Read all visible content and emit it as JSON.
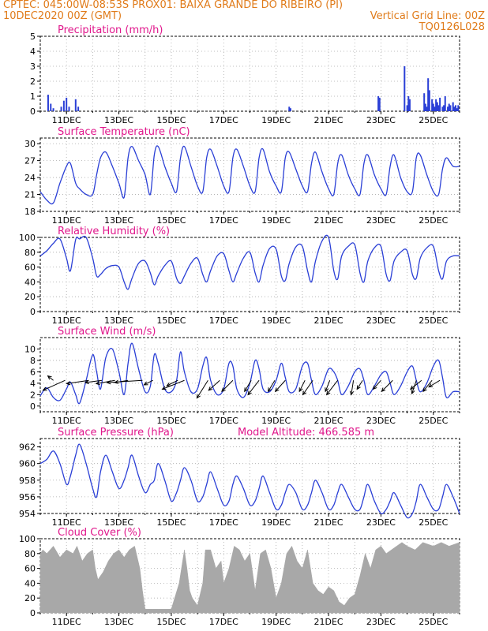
{
  "header": {
    "line1_left": "CPTEC:   045:00W-08:53S   PROX01: BAIXA GRANDE DO RIBEIRO (PI)",
    "line2_left": "10DEC2020 00Z (GMT)",
    "line2_right": "Vertical Grid Line: 00Z",
    "line3_right": "TQ0126L028"
  },
  "colors": {
    "header": "#e07b1a",
    "title": "#e0188c",
    "line": "#2a3fd6",
    "bars": "#2a3fd6",
    "cloud": "#a8a8a8",
    "arrow": "#000000"
  },
  "x_ticks": [
    "11DEC",
    "13DEC",
    "15DEC",
    "17DEC",
    "19DEC",
    "21DEC",
    "23DEC",
    "25DEC"
  ],
  "chart_data": [
    {
      "type": "bar",
      "title": "Precipitation (mm/h)",
      "ylim": [
        0,
        5
      ],
      "yticks": [
        "0",
        "1",
        "2",
        "3",
        "4",
        "5"
      ],
      "points": [
        [
          0.3,
          1.1
        ],
        [
          0.4,
          0.5
        ],
        [
          0.5,
          0.2
        ],
        [
          0.8,
          0.3
        ],
        [
          0.9,
          0.7
        ],
        [
          1.0,
          0.9
        ],
        [
          1.1,
          0.3
        ],
        [
          1.35,
          0.8
        ],
        [
          1.45,
          0.3
        ],
        [
          9.5,
          0.3
        ],
        [
          9.55,
          0.2
        ],
        [
          12.9,
          1.0
        ],
        [
          12.95,
          0.9
        ],
        [
          13.9,
          3.0
        ],
        [
          14.0,
          0.4
        ],
        [
          14.05,
          1.0
        ],
        [
          14.1,
          0.8
        ],
        [
          14.65,
          1.2
        ],
        [
          14.7,
          0.5
        ],
        [
          14.75,
          0.3
        ],
        [
          14.8,
          2.2
        ],
        [
          14.85,
          1.4
        ],
        [
          14.95,
          0.8
        ],
        [
          15.0,
          0.5
        ],
        [
          15.05,
          0.3
        ],
        [
          15.1,
          0.8
        ],
        [
          15.15,
          0.6
        ],
        [
          15.2,
          0.4
        ],
        [
          15.25,
          0.9
        ],
        [
          15.35,
          0.3
        ],
        [
          15.4,
          0.4
        ],
        [
          15.45,
          1.0
        ],
        [
          15.55,
          0.3
        ],
        [
          15.6,
          0.5
        ],
        [
          15.65,
          0.4
        ],
        [
          15.75,
          0.6
        ],
        [
          15.8,
          0.3
        ],
        [
          15.85,
          0.4
        ],
        [
          15.9,
          0.2
        ],
        [
          15.95,
          0.4
        ]
      ]
    },
    {
      "type": "line",
      "title": "Surface Temperature (nC)",
      "ylim": [
        18,
        31
      ],
      "yticks": [
        "18",
        "21",
        "24",
        "27",
        "30"
      ],
      "x": [
        0,
        0.25,
        0.5,
        0.75,
        1.0,
        1.15,
        1.35,
        1.5,
        1.75,
        2.0,
        2.15,
        2.3,
        2.5,
        2.75,
        3.0,
        3.2,
        3.35,
        3.5,
        3.75,
        4.0,
        4.2,
        4.35,
        4.5,
        4.75,
        5.0,
        5.2,
        5.35,
        5.5,
        5.75,
        6.0,
        6.2,
        6.35,
        6.5,
        6.75,
        7.0,
        7.2,
        7.35,
        7.5,
        7.75,
        8.0,
        8.2,
        8.35,
        8.5,
        8.75,
        9.0,
        9.2,
        9.35,
        9.5,
        9.75,
        10.0,
        10.2,
        10.35,
        10.5,
        10.75,
        11.0,
        11.2,
        11.35,
        11.5,
        11.75,
        12.0,
        12.2,
        12.35,
        12.5,
        12.75,
        13.0,
        13.2,
        13.35,
        13.5,
        13.75,
        14.0,
        14.2,
        14.35,
        14.5,
        14.75,
        15.0,
        15.2,
        15.35,
        15.5,
        15.75,
        16.0
      ],
      "y": [
        21.5,
        20.0,
        19.5,
        23.0,
        26.0,
        26.5,
        23.0,
        22.0,
        21.0,
        21.0,
        24.5,
        27.5,
        28.5,
        26.0,
        23.0,
        20.5,
        27.5,
        29.5,
        27.0,
        24.5,
        21.0,
        28.0,
        29.5,
        26.0,
        23.0,
        21.5,
        27.5,
        29.5,
        26.0,
        22.5,
        21.5,
        27.5,
        29.0,
        26.0,
        22.5,
        21.5,
        27.5,
        29.0,
        26.0,
        22.5,
        21.5,
        27.5,
        29.0,
        25.0,
        22.5,
        21.5,
        27.5,
        28.5,
        25.5,
        22.5,
        21.5,
        26.5,
        28.5,
        25.0,
        22.0,
        21.0,
        26.5,
        28.0,
        24.5,
        22.0,
        21.0,
        26.5,
        28.0,
        24.5,
        22.0,
        21.0,
        26.0,
        28.0,
        24.0,
        21.5,
        21.5,
        27.5,
        28.0,
        24.5,
        21.5,
        21.0,
        25.5,
        27.5,
        26.0,
        26.0
      ]
    },
    {
      "type": "line",
      "title": "Relative Humidity (%)",
      "ylim": [
        0,
        100
      ],
      "yticks": [
        "0",
        "20",
        "40",
        "60",
        "80",
        "100"
      ],
      "x": [
        0,
        0.25,
        0.5,
        0.75,
        1.0,
        1.15,
        1.35,
        1.5,
        1.75,
        2.0,
        2.15,
        2.3,
        2.5,
        2.75,
        3.0,
        3.2,
        3.35,
        3.5,
        3.75,
        4.0,
        4.2,
        4.35,
        4.5,
        4.75,
        5.0,
        5.2,
        5.35,
        5.5,
        5.75,
        6.0,
        6.2,
        6.35,
        6.5,
        6.75,
        7.0,
        7.2,
        7.35,
        7.5,
        7.75,
        8.0,
        8.2,
        8.35,
        8.5,
        8.75,
        9.0,
        9.2,
        9.35,
        9.5,
        9.75,
        10.0,
        10.2,
        10.35,
        10.5,
        10.75,
        11.0,
        11.2,
        11.35,
        11.5,
        11.75,
        12.0,
        12.2,
        12.35,
        12.5,
        12.75,
        13.0,
        13.2,
        13.35,
        13.5,
        13.75,
        14.0,
        14.2,
        14.35,
        14.5,
        14.75,
        15.0,
        15.2,
        15.35,
        15.5,
        15.75,
        16.0
      ],
      "y": [
        75,
        82,
        92,
        98,
        72,
        55,
        97,
        98,
        100,
        72,
        48,
        50,
        58,
        62,
        60,
        40,
        30,
        45,
        65,
        68,
        52,
        36,
        48,
        62,
        68,
        45,
        38,
        48,
        65,
        72,
        50,
        40,
        55,
        75,
        78,
        55,
        40,
        52,
        72,
        80,
        52,
        40,
        62,
        85,
        84,
        48,
        42,
        65,
        87,
        88,
        55,
        40,
        68,
        95,
        100,
        55,
        44,
        75,
        88,
        90,
        52,
        40,
        68,
        86,
        88,
        50,
        42,
        68,
        80,
        82,
        50,
        45,
        72,
        86,
        88,
        55,
        44,
        68,
        75,
        75
      ]
    },
    {
      "type": "line",
      "title": "Surface Wind (m/s)",
      "ylim": [
        -1,
        12
      ],
      "yticks": [
        "0",
        "2",
        "4",
        "6",
        "8",
        "10"
      ],
      "x": [
        0,
        0.25,
        0.5,
        0.75,
        1.0,
        1.15,
        1.35,
        1.5,
        1.75,
        2.0,
        2.15,
        2.3,
        2.5,
        2.75,
        3.0,
        3.2,
        3.35,
        3.5,
        3.75,
        4.0,
        4.2,
        4.35,
        4.5,
        4.75,
        5.0,
        5.2,
        5.35,
        5.5,
        5.75,
        6.0,
        6.2,
        6.35,
        6.5,
        6.75,
        7.0,
        7.2,
        7.35,
        7.5,
        7.75,
        8.0,
        8.2,
        8.35,
        8.5,
        8.75,
        9.0,
        9.2,
        9.35,
        9.5,
        9.75,
        10.0,
        10.2,
        10.35,
        10.5,
        10.75,
        11.0,
        11.2,
        11.35,
        11.5,
        11.75,
        12.0,
        12.2,
        12.35,
        12.5,
        12.75,
        13.0,
        13.2,
        13.35,
        13.5,
        13.75,
        14.0,
        14.2,
        14.35,
        14.5,
        14.75,
        15.0,
        15.2,
        15.35,
        15.5,
        15.75,
        16.0
      ],
      "y": [
        1.8,
        3.2,
        1.5,
        1.0,
        3.0,
        4.2,
        2.0,
        0.5,
        4.5,
        9.0,
        6.0,
        3.0,
        8.5,
        10.0,
        6.0,
        2.0,
        7.5,
        11.0,
        6.5,
        2.5,
        3.5,
        9.0,
        7.5,
        3.0,
        2.5,
        4.5,
        9.5,
        6.0,
        2.5,
        3.0,
        7.0,
        8.5,
        4.5,
        2.0,
        3.0,
        7.5,
        7.0,
        3.0,
        1.5,
        4.0,
        8.0,
        6.5,
        3.0,
        2.5,
        4.5,
        7.5,
        5.0,
        2.5,
        3.0,
        7.0,
        7.5,
        4.5,
        2.0,
        3.5,
        6.5,
        6.0,
        4.5,
        2.0,
        3.5,
        6.0,
        6.5,
        4.5,
        2.0,
        3.5,
        5.5,
        6.0,
        4.0,
        2.0,
        3.5,
        6.0,
        7.0,
        4.5,
        2.5,
        4.0,
        7.0,
        8.0,
        5.0,
        1.5,
        2.5,
        2.5
      ],
      "wind_vectors": [
        {
          "x": 0.5,
          "u": -0.5,
          "v": 0.4
        },
        {
          "x": 0.95,
          "u": -2.0,
          "v": -0.9
        },
        {
          "x": 1.85,
          "u": -2.0,
          "v": -0.3
        },
        {
          "x": 2.35,
          "u": -1.5,
          "v": -0.2
        },
        {
          "x": 2.85,
          "u": -1.7,
          "v": -0.3
        },
        {
          "x": 3.35,
          "u": -1.2,
          "v": -0.2
        },
        {
          "x": 3.9,
          "u": -3.2,
          "v": -0.2
        },
        {
          "x": 4.3,
          "u": -0.8,
          "v": -0.4
        },
        {
          "x": 5.25,
          "u": -1.0,
          "v": -0.5
        },
        {
          "x": 5.5,
          "u": -2.0,
          "v": -0.8
        },
        {
          "x": 6.4,
          "u": -1.0,
          "v": -1.6
        },
        {
          "x": 6.85,
          "u": -1.0,
          "v": -0.9
        },
        {
          "x": 7.35,
          "u": -1.0,
          "v": -1.0
        },
        {
          "x": 8.05,
          "u": -0.6,
          "v": -1.0
        },
        {
          "x": 8.35,
          "u": -1.0,
          "v": -1.3
        },
        {
          "x": 8.95,
          "u": -0.6,
          "v": -1.0
        },
        {
          "x": 9.35,
          "u": -0.9,
          "v": -1.0
        },
        {
          "x": 10.1,
          "u": -0.5,
          "v": -1.0
        },
        {
          "x": 10.4,
          "u": -0.9,
          "v": -1.3
        },
        {
          "x": 11.05,
          "u": -0.4,
          "v": -1.0
        },
        {
          "x": 11.35,
          "u": -1.0,
          "v": -1.3
        },
        {
          "x": 11.95,
          "u": -0.2,
          "v": -1.3
        },
        {
          "x": 12.3,
          "u": -0.5,
          "v": -0.8
        },
        {
          "x": 13.0,
          "u": -0.7,
          "v": -0.8
        },
        {
          "x": 13.45,
          "u": -1.0,
          "v": -1.0
        },
        {
          "x": 14.35,
          "u": -0.4,
          "v": -1.2
        },
        {
          "x": 14.55,
          "u": -1.0,
          "v": -0.8
        },
        {
          "x": 14.95,
          "u": -0.8,
          "v": -1.0
        },
        {
          "x": 15.25,
          "u": -1.0,
          "v": -0.6
        }
      ]
    },
    {
      "type": "line",
      "title": "Surface Pressure (hPa)",
      "annotation": "Model Altitude: 466.585 m",
      "ylim": [
        954,
        963
      ],
      "yticks": [
        "954",
        "956",
        "958",
        "960",
        "962"
      ],
      "x": [
        0,
        0.25,
        0.5,
        0.75,
        1.0,
        1.15,
        1.35,
        1.5,
        1.75,
        2.0,
        2.15,
        2.3,
        2.5,
        2.75,
        3.0,
        3.2,
        3.35,
        3.5,
        3.75,
        4.0,
        4.2,
        4.35,
        4.5,
        4.75,
        5.0,
        5.2,
        5.35,
        5.5,
        5.75,
        6.0,
        6.2,
        6.35,
        6.5,
        6.75,
        7.0,
        7.2,
        7.35,
        7.5,
        7.75,
        8.0,
        8.2,
        8.35,
        8.5,
        8.75,
        9.0,
        9.2,
        9.35,
        9.5,
        9.75,
        10.0,
        10.2,
        10.35,
        10.5,
        10.75,
        11.0,
        11.2,
        11.35,
        11.5,
        11.75,
        12.0,
        12.2,
        12.35,
        12.5,
        12.75,
        13.0,
        13.2,
        13.35,
        13.5,
        13.75,
        14.0,
        14.2,
        14.35,
        14.5,
        14.75,
        15.0,
        15.2,
        15.35,
        15.5,
        15.75,
        16.0
      ],
      "y": [
        960.0,
        960.5,
        961.5,
        960.0,
        957.5,
        958.5,
        961.0,
        962.3,
        960.0,
        957.0,
        956.0,
        959.0,
        961.0,
        959.0,
        957.0,
        958.0,
        959.5,
        961.0,
        958.5,
        956.5,
        957.5,
        958.0,
        960.0,
        958.0,
        955.5,
        956.5,
        958.0,
        959.5,
        958.0,
        955.5,
        956.0,
        957.5,
        959.0,
        957.0,
        955.0,
        955.5,
        957.5,
        958.5,
        957.0,
        955.0,
        955.5,
        957.0,
        958.5,
        956.5,
        954.5,
        955.0,
        956.5,
        957.5,
        956.5,
        954.5,
        955.0,
        956.5,
        958.0,
        956.5,
        954.5,
        955.0,
        956.5,
        957.5,
        956.0,
        954.5,
        954.5,
        956.0,
        957.5,
        955.5,
        954.0,
        954.5,
        955.5,
        956.5,
        955.0,
        953.5,
        954.0,
        955.5,
        957.5,
        956.0,
        954.5,
        954.5,
        956.0,
        957.5,
        956.0,
        954.0
      ]
    },
    {
      "type": "area",
      "title": "Cloud Cover (%)",
      "ylim": [
        0,
        100
      ],
      "yticks": [
        "0",
        "20",
        "40",
        "60",
        "80",
        "100"
      ],
      "x": [
        0,
        0.1,
        0.25,
        0.5,
        0.75,
        1.0,
        1.25,
        1.4,
        1.6,
        1.8,
        2.0,
        2.1,
        2.2,
        2.4,
        2.6,
        2.8,
        3.0,
        3.2,
        3.4,
        3.6,
        3.8,
        3.9,
        4.0,
        4.3,
        4.5,
        4.7,
        5.0,
        5.3,
        5.5,
        5.6,
        5.7,
        5.8,
        6.0,
        6.2,
        6.3,
        6.5,
        6.7,
        6.9,
        7.0,
        7.2,
        7.4,
        7.6,
        7.8,
        8.0,
        8.2,
        8.4,
        8.6,
        8.8,
        9.0,
        9.2,
        9.4,
        9.6,
        9.8,
        10.0,
        10.2,
        10.4,
        10.6,
        10.8,
        11.0,
        11.2,
        11.4,
        11.6,
        11.8,
        12.0,
        12.2,
        12.4,
        12.6,
        12.8,
        13.0,
        13.2,
        13.4,
        13.6,
        13.8,
        14.0,
        14.3,
        14.6,
        15.0,
        15.3,
        15.6,
        16.0
      ],
      "y": [
        80,
        85,
        80,
        90,
        75,
        85,
        80,
        90,
        70,
        80,
        85,
        60,
        45,
        55,
        70,
        80,
        85,
        75,
        85,
        90,
        60,
        30,
        5,
        5,
        5,
        5,
        5,
        40,
        85,
        60,
        30,
        20,
        10,
        40,
        85,
        85,
        60,
        70,
        40,
        60,
        90,
        85,
        70,
        80,
        30,
        80,
        85,
        60,
        20,
        40,
        80,
        90,
        70,
        60,
        85,
        40,
        30,
        25,
        35,
        30,
        15,
        10,
        20,
        25,
        50,
        80,
        60,
        85,
        90,
        80,
        85,
        90,
        95,
        90,
        85,
        95,
        90,
        95,
        90,
        95
      ]
    }
  ]
}
